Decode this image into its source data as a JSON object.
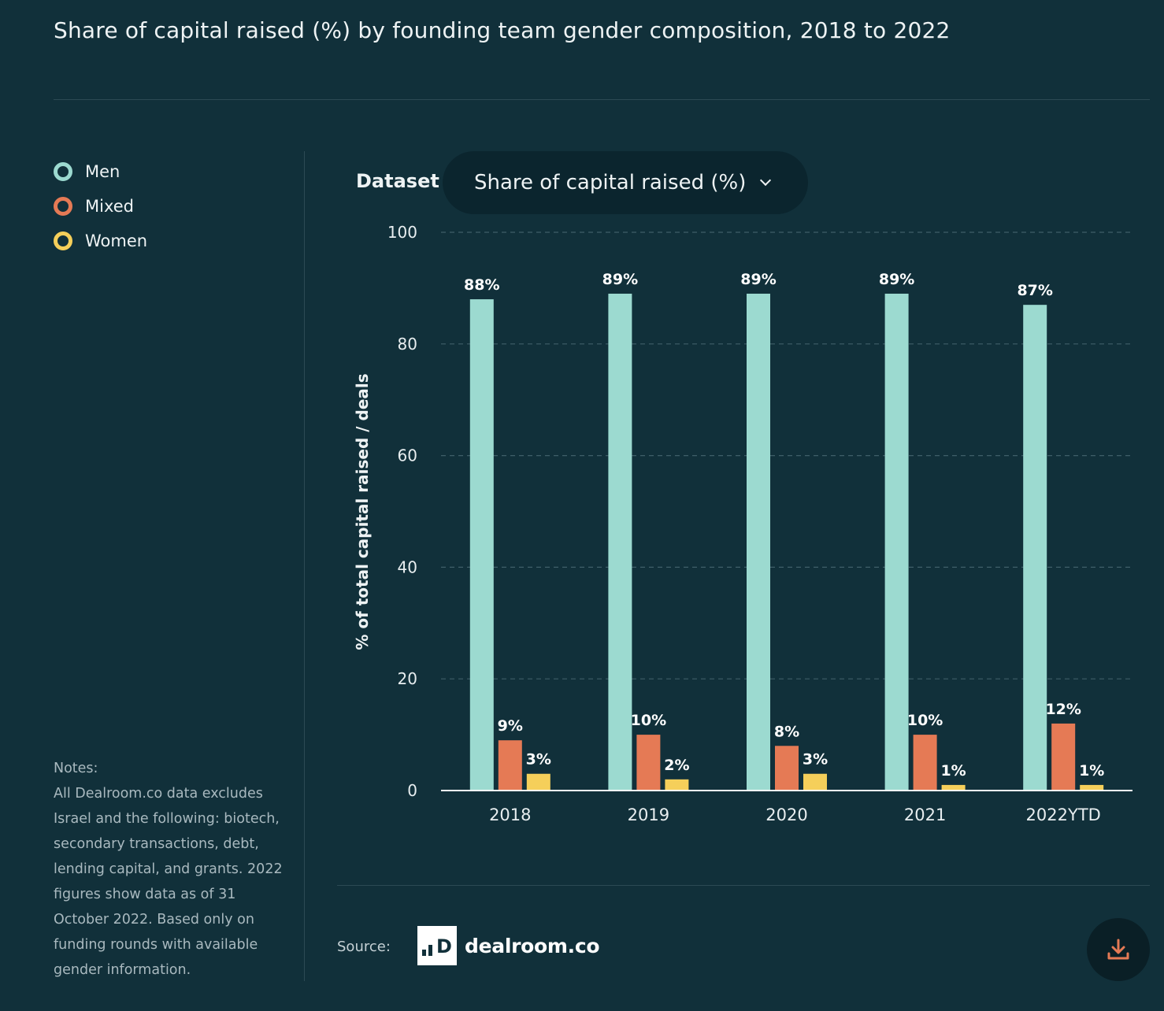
{
  "title": "Share of capital raised (%) by founding team gender composition, 2018 to 2022",
  "legend": [
    {
      "label": "Men",
      "color": "#9cdad0"
    },
    {
      "label": "Mixed",
      "color": "#e57a55"
    },
    {
      "label": "Women",
      "color": "#f5cf5a"
    }
  ],
  "notes": {
    "heading": "Notes:",
    "text": "All Dealroom.co data excludes Israel and the following: biotech, secondary transactions, debt, lending capital, and grants. 2022 figures show data as of 31 October 2022. Based only on funding rounds with available gender information."
  },
  "dataset": {
    "label": "Dataset",
    "selected": "Share of capital raised (%)"
  },
  "source": {
    "label": "Source:",
    "brand": "dealroom.co",
    "brand_mark": "D"
  },
  "download": {
    "icon": "download-icon"
  },
  "chart_data": {
    "type": "bar",
    "title": "Share of capital raised (%) by founding team gender composition, 2018 to 2022",
    "xlabel": "",
    "ylabel": "% of total capital raised / deals",
    "ylim": [
      0,
      100
    ],
    "yticks": [
      0,
      20,
      40,
      60,
      80,
      100
    ],
    "grid": true,
    "categories": [
      "2018",
      "2019",
      "2020",
      "2021",
      "2022YTD"
    ],
    "series": [
      {
        "name": "Men",
        "color": "#9cdad0",
        "values": [
          88,
          89,
          89,
          89,
          87
        ],
        "labels": [
          "88%",
          "89%",
          "89%",
          "89%",
          "87%"
        ]
      },
      {
        "name": "Mixed",
        "color": "#e57a55",
        "values": [
          9,
          10,
          8,
          10,
          12
        ],
        "labels": [
          "9%",
          "10%",
          "8%",
          "10%",
          "12%"
        ]
      },
      {
        "name": "Women",
        "color": "#f5cf5a",
        "values": [
          3,
          2,
          3,
          1,
          1
        ],
        "labels": [
          "3%",
          "2%",
          "3%",
          "1%",
          "1%"
        ]
      }
    ]
  }
}
